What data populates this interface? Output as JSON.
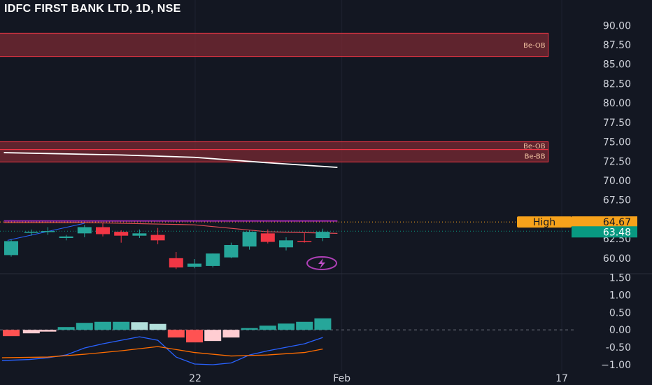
{
  "title": "IDFC FIRST BANK LTD, 1D, NSE",
  "colors": {
    "background": "#131722",
    "up": "#26a69a",
    "down": "#f23645",
    "hist_up_strong": "#26a69a",
    "hist_up_weak": "#b2dfdb",
    "hist_down_strong": "#ff5252",
    "hist_down_weak": "#ffcdd2",
    "zone_fill": "#7a2a33",
    "zone_border": "#f23645",
    "sma": "#ffffff",
    "high_line": "#9c27b0",
    "ema_red": "#e04c56",
    "trend_blue": "#2962ff",
    "macd_line": "#2962ff",
    "signal_line": "#ff6d00",
    "high_badge": "#f7a21b",
    "price_badge": "#089981"
  },
  "chart_data": [
    {
      "type": "candlestick",
      "title": "IDFC FIRST BANK LTD, 1D, NSE",
      "ylim": [
        58.0,
        91.2
      ],
      "yticks": [
        "90.00",
        "87.50",
        "85.00",
        "82.50",
        "80.00",
        "77.50",
        "75.00",
        "72.50",
        "70.00",
        "67.50",
        "62.50",
        "60.00"
      ],
      "xticks": [
        {
          "label": "22",
          "x": 10
        },
        {
          "label": "Feb",
          "x": 18
        },
        {
          "label": "17",
          "x": 30
        }
      ],
      "candles": [
        {
          "x": 0,
          "o": 60.4,
          "h": 62.4,
          "l": 60.2,
          "c": 62.2
        },
        {
          "x": 1.1,
          "o": 63.3,
          "h": 63.7,
          "l": 62.9,
          "c": 63.4
        },
        {
          "x": 2,
          "o": 63.5,
          "h": 64.0,
          "l": 63.0,
          "c": 63.5
        },
        {
          "x": 3,
          "o": 62.6,
          "h": 63.0,
          "l": 62.3,
          "c": 62.8
        },
        {
          "x": 4,
          "o": 63.2,
          "h": 64.3,
          "l": 62.7,
          "c": 64.0
        },
        {
          "x": 5,
          "o": 64.0,
          "h": 64.5,
          "l": 62.8,
          "c": 63.1
        },
        {
          "x": 6,
          "o": 63.4,
          "h": 63.6,
          "l": 62.0,
          "c": 62.9
        },
        {
          "x": 7,
          "o": 62.9,
          "h": 63.7,
          "l": 62.6,
          "c": 63.2
        },
        {
          "x": 8,
          "o": 63.0,
          "h": 63.9,
          "l": 61.8,
          "c": 62.3
        },
        {
          "x": 9,
          "o": 60.0,
          "h": 60.8,
          "l": 58.6,
          "c": 58.8
        },
        {
          "x": 10,
          "o": 58.9,
          "h": 59.9,
          "l": 58.7,
          "c": 59.3
        },
        {
          "x": 11,
          "o": 59.0,
          "h": 60.6,
          "l": 58.8,
          "c": 60.6
        },
        {
          "x": 12,
          "o": 60.1,
          "h": 62.0,
          "l": 60.0,
          "c": 61.7
        },
        {
          "x": 13,
          "o": 61.5,
          "h": 63.6,
          "l": 61.1,
          "c": 63.4
        },
        {
          "x": 14,
          "o": 63.2,
          "h": 63.7,
          "l": 61.9,
          "c": 62.1
        },
        {
          "x": 15,
          "o": 61.4,
          "h": 62.7,
          "l": 61.0,
          "c": 62.3
        },
        {
          "x": 16,
          "o": 62.2,
          "h": 63.3,
          "l": 62.0,
          "c": 62.1
        },
        {
          "x": 17,
          "o": 62.6,
          "h": 63.8,
          "l": 62.2,
          "c": 63.4
        }
      ],
      "zones": [
        {
          "label": "Be-OB",
          "from": 86.0,
          "to": 89.0,
          "x_end": 29.3
        },
        {
          "label": "Be-OB",
          "from": 74.0,
          "to": 75.0,
          "x_end": 29.3
        },
        {
          "label": "Be-BB",
          "from": 72.4,
          "to": 74.0,
          "x_end": 29.3
        }
      ],
      "sma_line": [
        [
          -0.4,
          73.6
        ],
        [
          6,
          73.3
        ],
        [
          10,
          73.0
        ],
        [
          14,
          72.3
        ],
        [
          17.8,
          71.7
        ]
      ],
      "high_line": [
        [
          -0.4,
          64.8
        ],
        [
          17.8,
          64.8
        ]
      ],
      "ema_line": [
        [
          -0.4,
          64.6
        ],
        [
          4,
          64.6
        ],
        [
          10,
          64.3
        ],
        [
          14,
          63.4
        ],
        [
          17.8,
          63.2
        ]
      ],
      "trend_line": [
        [
          -0.2,
          62.3
        ],
        [
          4,
          64.5
        ]
      ],
      "dotted_levels": [
        {
          "value": 64.67,
          "color": "#f7a21b"
        },
        {
          "value": 63.48,
          "color": "#089981"
        }
      ],
      "badges": [
        {
          "label": "High",
          "value": "64.67",
          "price": 64.67
        },
        {
          "value": "63.48",
          "price": 63.48
        }
      ]
    },
    {
      "type": "bar",
      "name": "momentum",
      "ylim": [
        -1.08,
        1.55
      ],
      "yticks": [
        "1.50",
        "1.00",
        "0.50",
        "0.00",
        "-0.50",
        "−1.00"
      ],
      "histogram": [
        {
          "x": 0,
          "v": -0.18
        },
        {
          "x": 1.1,
          "v": -0.1
        },
        {
          "x": 2,
          "v": -0.05
        },
        {
          "x": 3,
          "v": 0.08
        },
        {
          "x": 4,
          "v": 0.2
        },
        {
          "x": 5,
          "v": 0.23
        },
        {
          "x": 6,
          "v": 0.23
        },
        {
          "x": 7,
          "v": 0.22
        },
        {
          "x": 8,
          "v": 0.17
        },
        {
          "x": 9,
          "v": -0.22
        },
        {
          "x": 10,
          "v": -0.36
        },
        {
          "x": 11,
          "v": -0.32
        },
        {
          "x": 12,
          "v": -0.22
        },
        {
          "x": 13,
          "v": 0.05
        },
        {
          "x": 14,
          "v": 0.12
        },
        {
          "x": 15,
          "v": 0.18
        },
        {
          "x": 16,
          "v": 0.23
        },
        {
          "x": 17,
          "v": 0.33
        }
      ],
      "macd_line": [
        [
          -0.5,
          -0.88
        ],
        [
          1,
          -0.85
        ],
        [
          2,
          -0.8
        ],
        [
          3,
          -0.72
        ],
        [
          4,
          -0.52
        ],
        [
          5,
          -0.4
        ],
        [
          6,
          -0.3
        ],
        [
          7,
          -0.2
        ],
        [
          8,
          -0.3
        ],
        [
          9,
          -0.78
        ],
        [
          10,
          -0.98
        ],
        [
          11,
          -1.0
        ],
        [
          12,
          -0.95
        ],
        [
          13,
          -0.72
        ],
        [
          14,
          -0.6
        ],
        [
          15,
          -0.5
        ],
        [
          16,
          -0.4
        ],
        [
          17,
          -0.22
        ]
      ],
      "signal_line": [
        [
          -0.5,
          -0.8
        ],
        [
          2,
          -0.78
        ],
        [
          4,
          -0.7
        ],
        [
          6,
          -0.6
        ],
        [
          8,
          -0.48
        ],
        [
          10,
          -0.65
        ],
        [
          12,
          -0.75
        ],
        [
          14,
          -0.72
        ],
        [
          16,
          -0.65
        ],
        [
          17,
          -0.55
        ]
      ]
    }
  ]
}
